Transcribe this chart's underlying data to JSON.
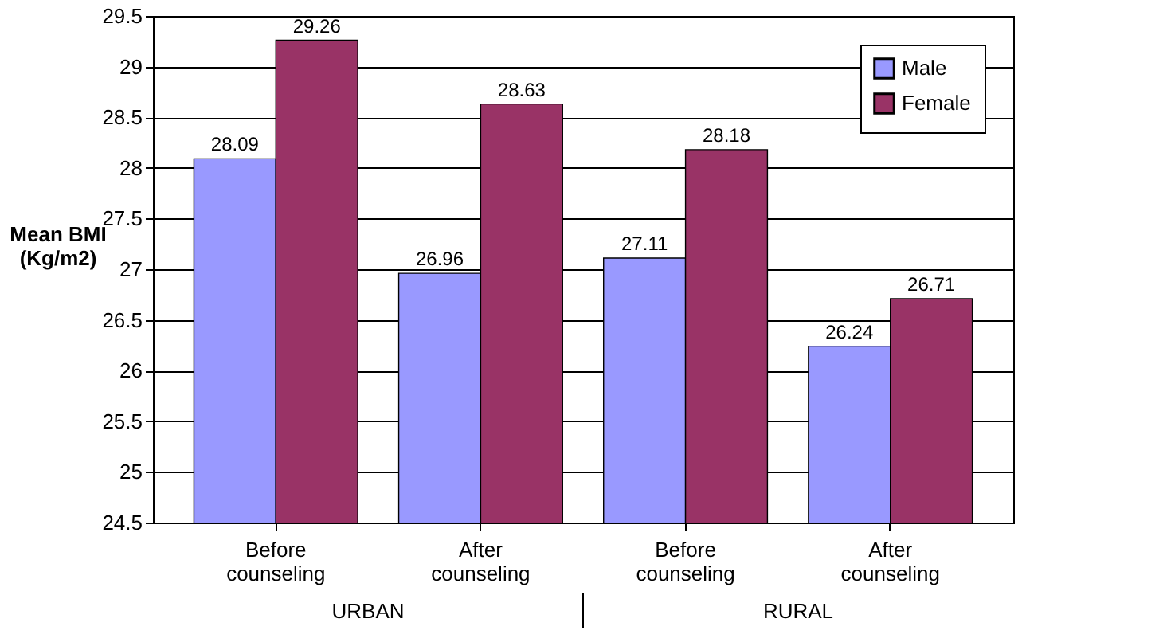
{
  "chart_data": {
    "type": "bar",
    "ylabel": "Mean BMI (Kg/m2)",
    "categories": [
      "Before counseling",
      "After counseling",
      "Before counseling",
      "After counseling"
    ],
    "series": [
      {
        "name": "Male",
        "color": "#9999ff",
        "values": [
          28.09,
          26.96,
          27.11,
          26.24
        ]
      },
      {
        "name": "Female",
        "color": "#993366",
        "values": [
          29.26,
          28.63,
          28.18,
          26.71
        ]
      }
    ],
    "ylim": [
      24.5,
      29.5
    ],
    "yticks": [
      24.5,
      25,
      25.5,
      26,
      26.5,
      27,
      27.5,
      28,
      28.5,
      29,
      29.5
    ],
    "grid": "y",
    "legend": "top right",
    "data_labels": true,
    "annotations": [
      "URBAN",
      "RURAL"
    ]
  }
}
